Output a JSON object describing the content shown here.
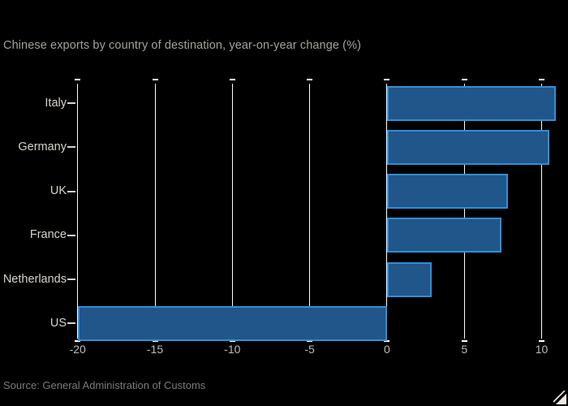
{
  "title": "Chinese exports by country of destination, year-on-year change (%)",
  "source": "Source: General Administration of Customs",
  "expand_icon_name": "expand-chart-triangle",
  "colors": {
    "background": "#000000",
    "bar_fill": "#20568a",
    "bar_stroke": "#2f8fd6",
    "grid": "#ffffff",
    "title_text": "#a5a09a",
    "label_text": "#d7d2cb",
    "tick_text": "#c0bbb5",
    "source_text": "#7f7a76",
    "expand_icon": "#f2e9df"
  },
  "chart_data": {
    "type": "bar",
    "orientation": "horizontal",
    "title": "Chinese exports by country of destination, year-on-year change (%)",
    "categories": [
      "Italy",
      "Germany",
      "UK",
      "France",
      "Netherlands",
      "US"
    ],
    "values": [
      10.9,
      10.5,
      7.8,
      7.4,
      2.9,
      -20.0
    ],
    "xlabel": "",
    "ylabel": "",
    "xlim": [
      -20,
      11
    ],
    "xticks": [
      -20,
      -15,
      -10,
      -5,
      0,
      5,
      10
    ],
    "grid": true,
    "legend": false,
    "zero_line": 0
  }
}
